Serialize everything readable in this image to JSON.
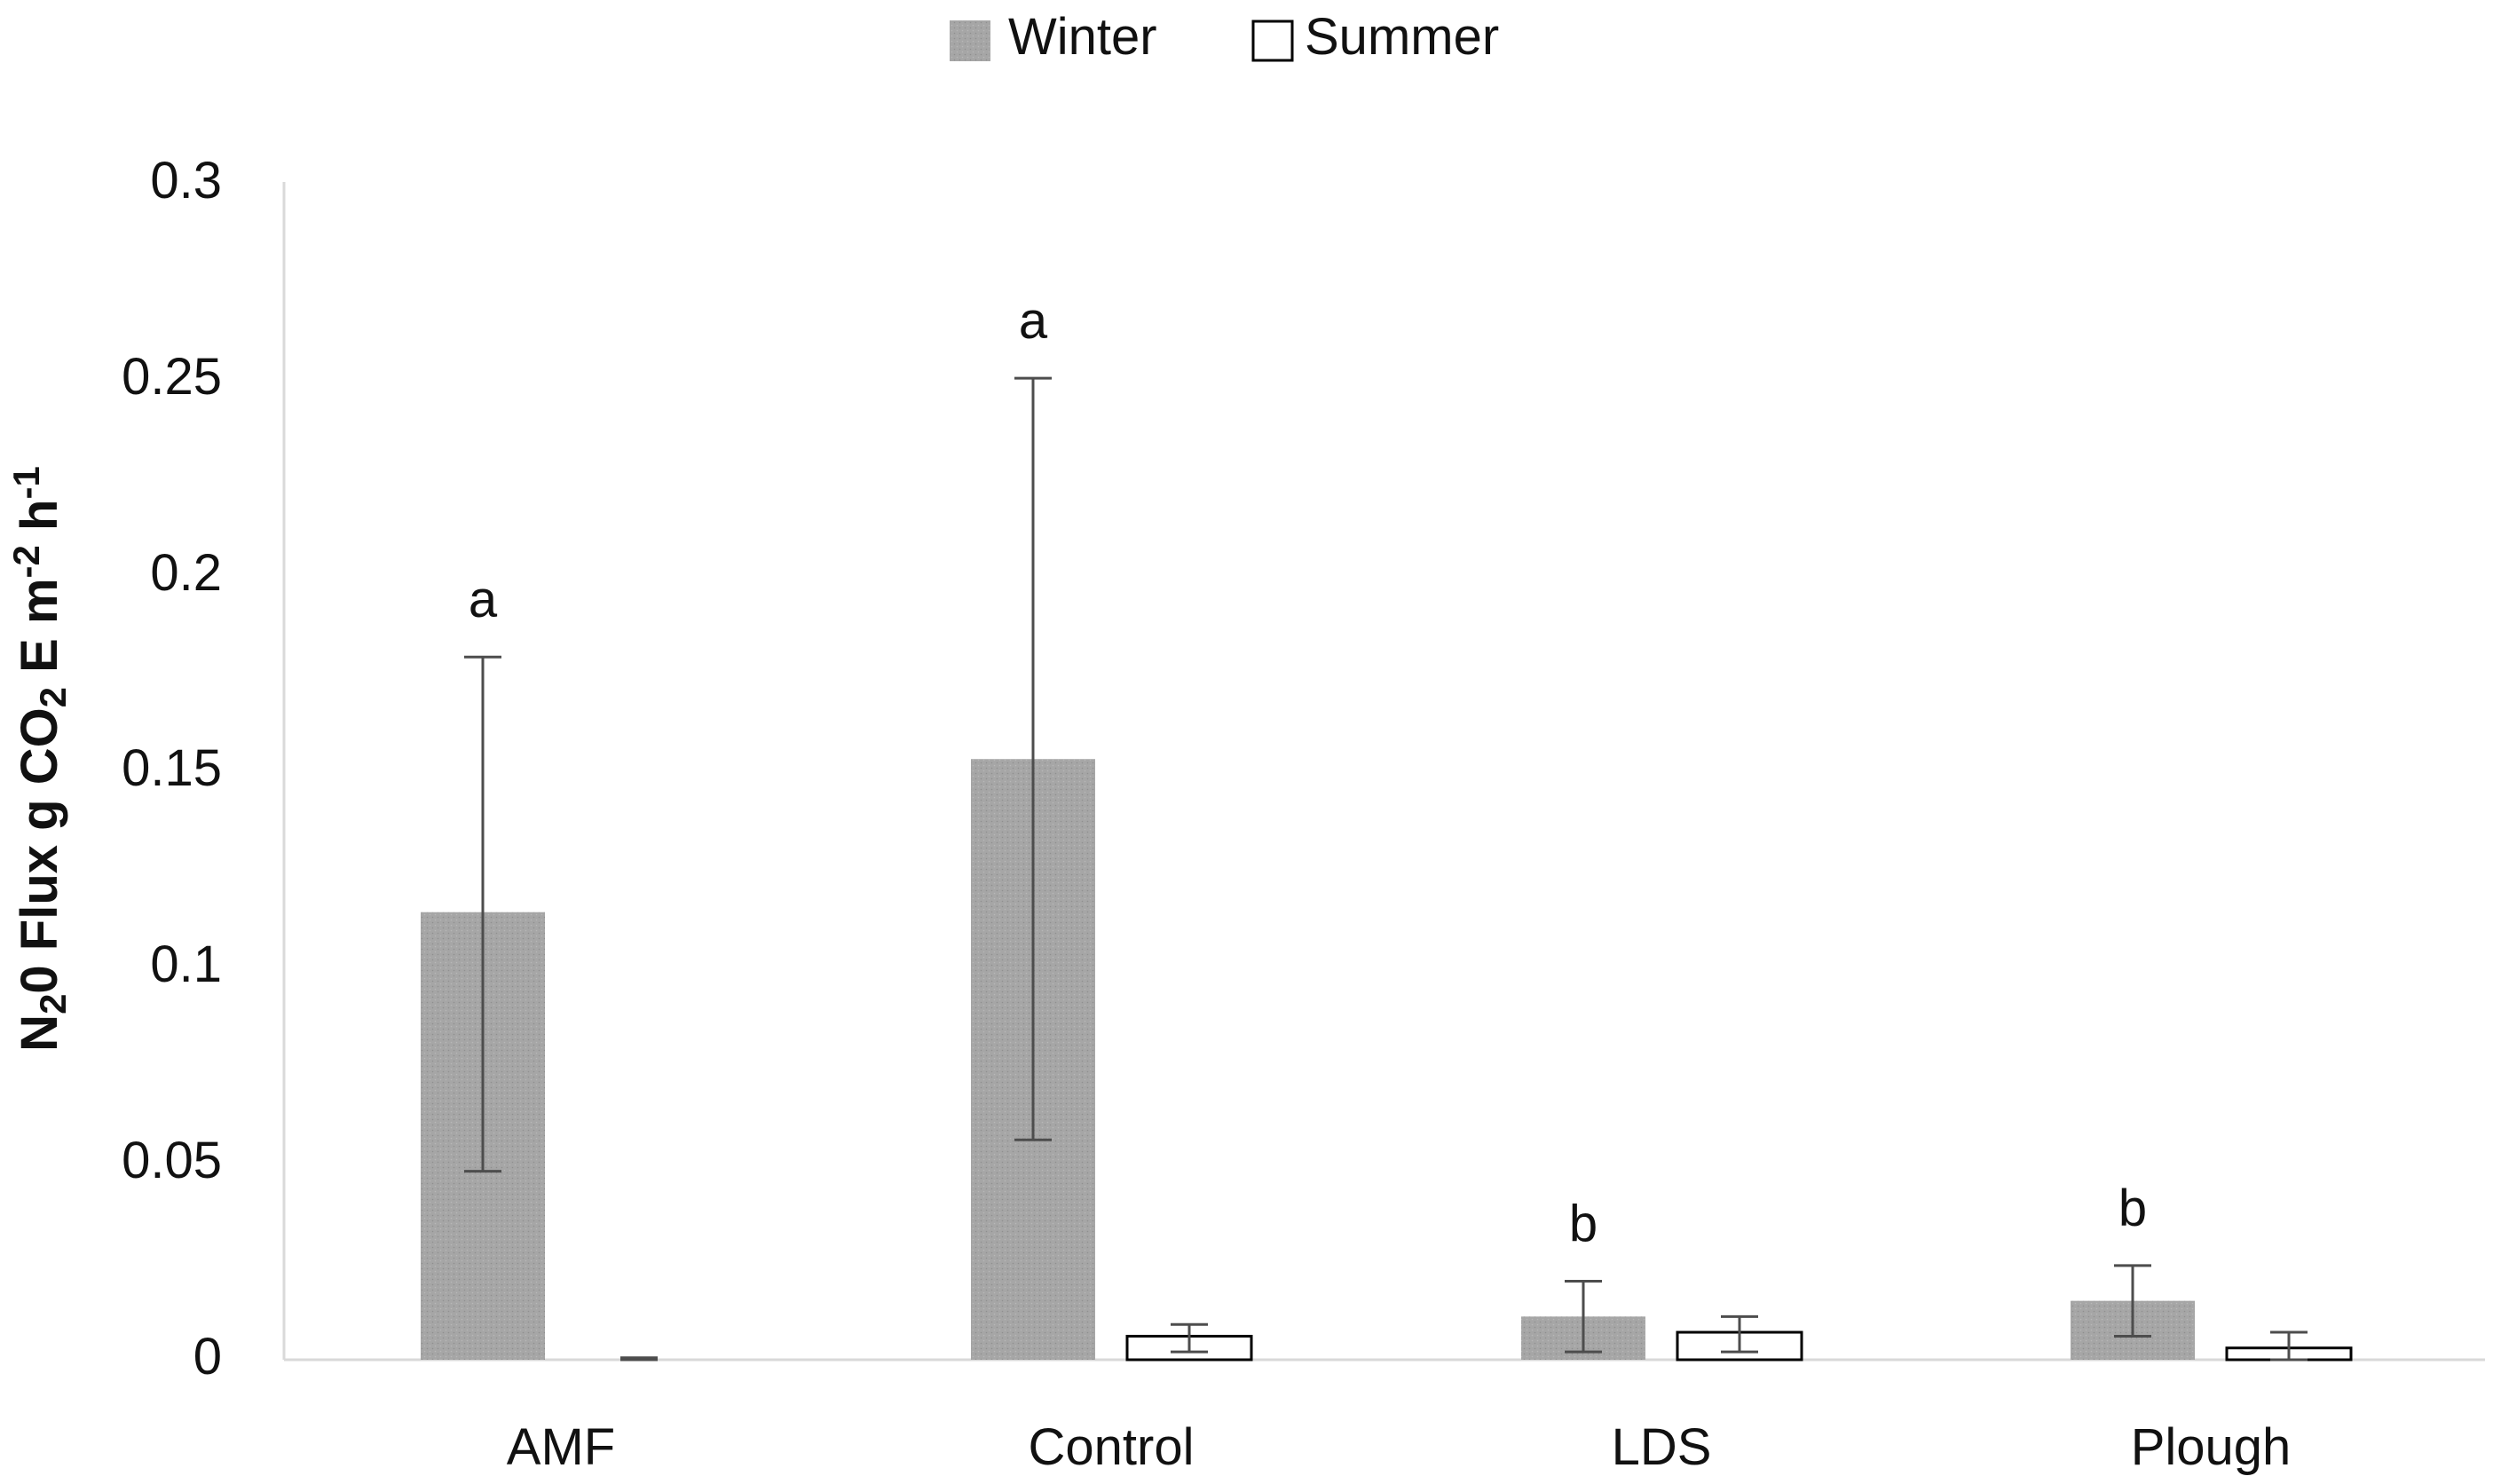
{
  "chart_data": {
    "type": "bar",
    "title": "",
    "xlabel": "",
    "ylabel": {
      "parts": [
        "N",
        "2",
        "0 Flux g CO",
        "2",
        " E m",
        "-2",
        " h",
        "-1"
      ]
    },
    "categories": [
      "AMF",
      "Control",
      "LDS",
      "Plough"
    ],
    "ylim": [
      0,
      0.3
    ],
    "y_ticks": [
      "0",
      "0.05",
      "0.1",
      "0.15",
      "0.2",
      "0.25",
      "0.3"
    ],
    "y_tick_values": [
      0,
      0.05,
      0.1,
      0.15,
      0.2,
      0.25,
      0.3
    ],
    "grid": false,
    "legend_position": "top-center",
    "series": [
      {
        "name": "Winter",
        "color": "#a6a6a6",
        "fill": "textured-gray",
        "values": [
          0.114,
          0.153,
          0.011,
          0.015
        ],
        "error_low": [
          0.048,
          0.056,
          0.002,
          0.006
        ],
        "error_high": [
          0.179,
          0.25,
          0.02,
          0.024
        ]
      },
      {
        "name": "Summer",
        "color": "#ffffff",
        "fill": "white-outline",
        "values": [
          0.0,
          0.006,
          0.007,
          0.003
        ],
        "error_low": [
          0.0,
          0.002,
          0.002,
          0.0
        ],
        "error_high": [
          0.0005,
          0.009,
          0.011,
          0.007
        ]
      }
    ],
    "annotations": [
      {
        "category": "AMF",
        "series": "Winter",
        "text": "a"
      },
      {
        "category": "Control",
        "series": "Winter",
        "text": "a"
      },
      {
        "category": "LDS",
        "series": "Winter",
        "text": "b"
      },
      {
        "category": "Plough",
        "series": "Winter",
        "text": "b"
      }
    ]
  }
}
